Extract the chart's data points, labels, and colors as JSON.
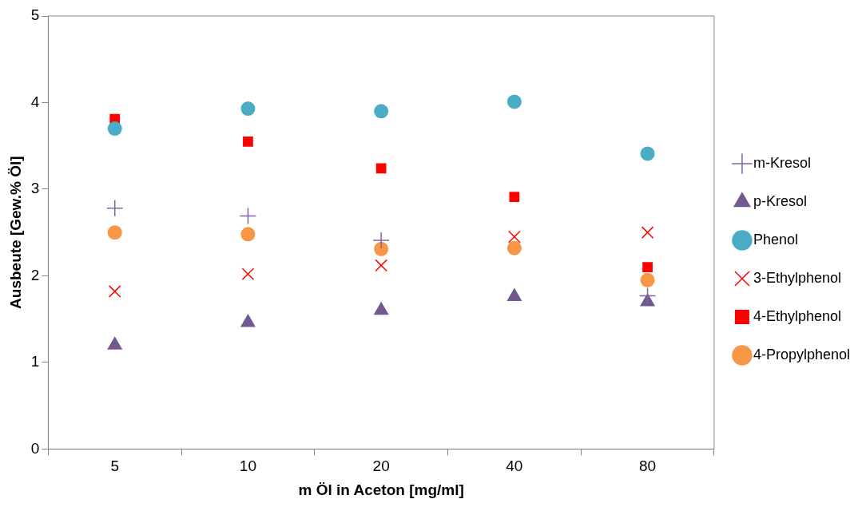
{
  "chart_data": {
    "type": "scatter",
    "xlabel": "m Öl in Aceton [mg/ml]",
    "ylabel": "Ausbeute [Gew.% Öl]",
    "categories": [
      "5",
      "10",
      "20",
      "40",
      "80"
    ],
    "ylim": [
      0,
      5
    ],
    "yticks": [
      0,
      1,
      2,
      3,
      4,
      5
    ],
    "grid": false,
    "legend": "right",
    "series": [
      {
        "name": "m-Kresol",
        "color": "#8064a2",
        "marker": "cross",
        "values": [
          2.78,
          2.69,
          2.41,
          null,
          1.77
        ]
      },
      {
        "name": "p-Kresol",
        "color": "#71588f",
        "marker": "triangle",
        "values": [
          1.2,
          1.46,
          1.6,
          1.76,
          1.7
        ]
      },
      {
        "name": "Phenol",
        "color": "#4bacc6",
        "marker": "circle",
        "values": [
          3.7,
          3.93,
          3.9,
          4.01,
          3.41
        ]
      },
      {
        "name": "3-Ethylphenol",
        "color": "#ff0000",
        "marker": "x",
        "values": [
          1.82,
          2.02,
          2.12,
          2.45,
          2.5
        ]
      },
      {
        "name": "4-Ethylphenol",
        "color": "#ff0000",
        "marker": "square",
        "values": [
          3.81,
          3.55,
          3.24,
          2.91,
          2.1
        ]
      },
      {
        "name": "4-Propylphenol",
        "color": "#f79646",
        "marker": "circle",
        "values": [
          2.5,
          2.48,
          2.31,
          2.32,
          1.95
        ]
      }
    ]
  }
}
